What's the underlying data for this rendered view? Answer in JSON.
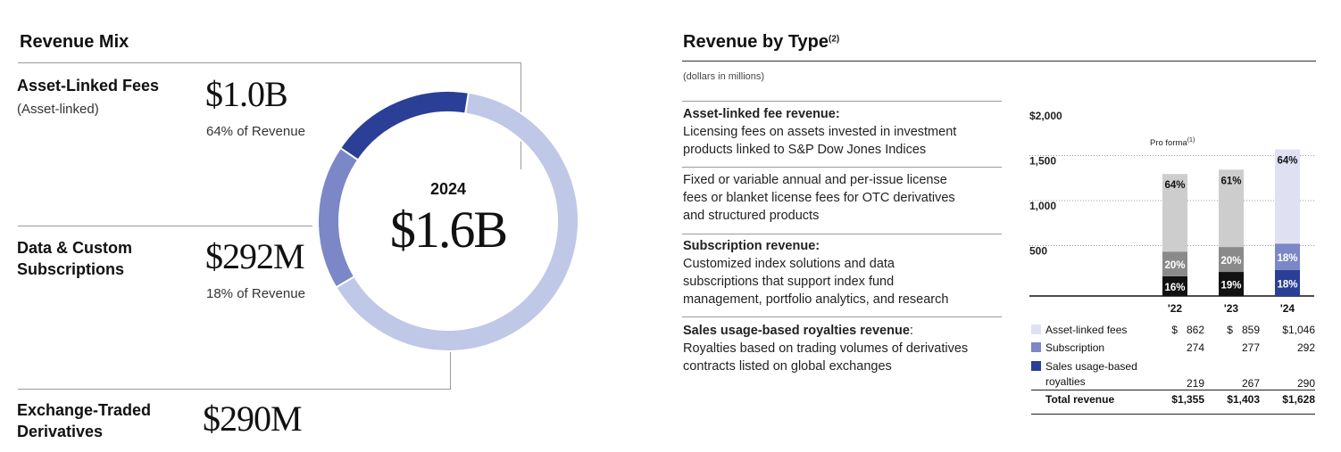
{
  "left": {
    "title": "Revenue Mix",
    "segments": [
      {
        "name": "Asset-Linked Fees",
        "sub": "(Asset-linked)",
        "value": "$1.0B",
        "pct_text": "64% of Revenue"
      },
      {
        "name_line1": "Data & Custom",
        "name_line2": "Subscriptions",
        "value": "$292M",
        "pct_text": "18% of Revenue"
      },
      {
        "name_line1": "Exchange-Traded",
        "name_line2": "Derivatives",
        "value": "$290M"
      }
    ],
    "donut": {
      "year": "2024",
      "total": "$1.6B"
    }
  },
  "right": {
    "title": "Revenue by Type",
    "title_sup": "(2)",
    "units": "(dollars in millions)",
    "desc": [
      {
        "head": "Asset-linked fee revenue:",
        "line1": "Licensing fees on assets invested in investment",
        "line2": "products linked to S&P Dow Jones Indices"
      },
      {
        "line1": "Fixed or variable annual and per-issue license",
        "line2": "fees or blanket license fees for OTC derivatives",
        "line3": "and structured products"
      },
      {
        "head": "Subscription revenue:",
        "line1": "Customized index solutions and data",
        "line2": "subscriptions that support index fund",
        "line3": "management, portfolio analytics, and research"
      },
      {
        "head": "Sales usage-based royalties revenue",
        "head_suffix": ":",
        "line1": "Royalties based on trading volumes of derivatives",
        "line2": "contracts listed on global exchanges"
      }
    ],
    "pro_forma": "Pro forma",
    "pro_forma_sup": "(1)",
    "table": {
      "rows": [
        {
          "label": "Asset-linked fees",
          "v22": "$   862",
          "v23": "$   859",
          "v24": "$1,046"
        },
        {
          "label": "Subscription",
          "v22": "274",
          "v23": "277",
          "v24": "292"
        },
        {
          "label_line1": "Sales usage-based",
          "label_line2": "royalties",
          "v22": "219",
          "v23": "267",
          "v24": "290"
        },
        {
          "label": "Total revenue",
          "v22": "$1,355",
          "v23": "$1,403",
          "v24": "$1,628"
        }
      ]
    }
  },
  "colors": {
    "light": "#dfe1f3",
    "mid": "#7b87c6",
    "dark": "#2b3f96",
    "donut_light": "#c0c8e7",
    "gray_light": "#cdcdcd",
    "gray_mid": "#8a8a8a",
    "black": "#111111"
  },
  "chart_data": [
    {
      "type": "pie",
      "title": "Revenue Mix",
      "center_label": "2024 $1.6B",
      "labels": [
        "Asset-Linked Fees",
        "Data & Custom Subscriptions",
        "Exchange-Traded Derivatives"
      ],
      "values": [
        64,
        18,
        18
      ]
    },
    {
      "type": "bar",
      "stacked": true,
      "categories": [
        "'22",
        "'23",
        "'24"
      ],
      "ylim": [
        0,
        2000
      ],
      "yticks": [
        "$2,000",
        "1,500",
        "1,000",
        "500"
      ],
      "series": [
        {
          "name": "Sales usage-based royalties",
          "values": [
            219,
            267,
            290
          ],
          "labels": [
            "16%",
            "19%",
            "18%"
          ]
        },
        {
          "name": "Subscription",
          "values": [
            274,
            277,
            292
          ],
          "labels": [
            "20%",
            "20%",
            "18%"
          ]
        },
        {
          "name": "Asset-linked fees",
          "values": [
            862,
            859,
            1046
          ],
          "labels": [
            "64%",
            "61%",
            "64%"
          ]
        }
      ],
      "totals": [
        1355,
        1403,
        1628
      ]
    }
  ]
}
